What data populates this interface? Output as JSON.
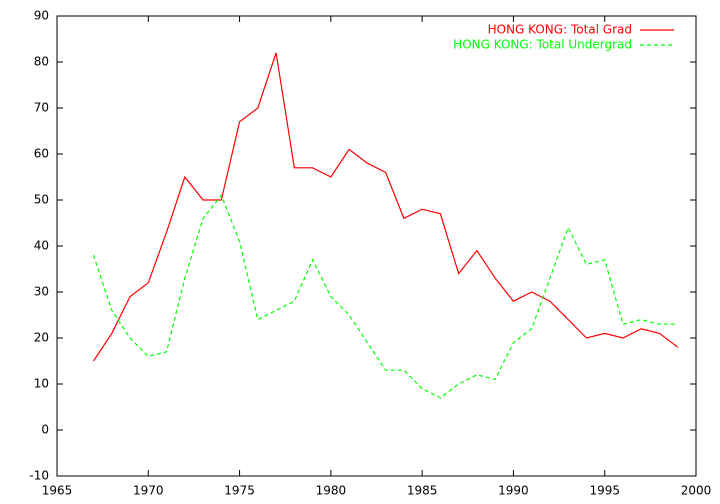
{
  "chart_data": {
    "type": "line",
    "x": [
      1967,
      1968,
      1969,
      1970,
      1971,
      1972,
      1973,
      1974,
      1975,
      1976,
      1977,
      1978,
      1979,
      1980,
      1981,
      1982,
      1983,
      1984,
      1985,
      1986,
      1987,
      1988,
      1989,
      1990,
      1991,
      1992,
      1993,
      1994,
      1995,
      1996,
      1997,
      1998,
      1999
    ],
    "series": [
      {
        "name": "HONG KONG: Total Grad",
        "color": "#ff0000",
        "dash": "solid",
        "values": [
          15,
          21,
          29,
          32,
          43,
          55,
          50,
          50,
          67,
          70,
          82,
          57,
          57,
          55,
          61,
          58,
          56,
          46,
          48,
          47,
          34,
          39,
          33,
          28,
          30,
          28,
          24,
          20,
          21,
          20,
          22,
          21,
          18
        ]
      },
      {
        "name": "HONG KONG: Total Undergrad",
        "color": "#00ff00",
        "dash": "dashed",
        "values": [
          38,
          26,
          20,
          16,
          17,
          33,
          46,
          51,
          41,
          24,
          26,
          28,
          37,
          29,
          25,
          19,
          13,
          13,
          9,
          7,
          10,
          12,
          11,
          19,
          22,
          33,
          44,
          36,
          37,
          23,
          24,
          23,
          23
        ]
      }
    ],
    "xlim": [
      1965,
      2000
    ],
    "xticks": [
      1965,
      1970,
      1975,
      1980,
      1985,
      1990,
      1995,
      2000
    ],
    "ylim": [
      -10,
      90
    ],
    "yticks": [
      -10,
      0,
      10,
      20,
      30,
      40,
      50,
      60,
      70,
      80,
      90
    ],
    "grid": false,
    "legend": "top-right"
  }
}
